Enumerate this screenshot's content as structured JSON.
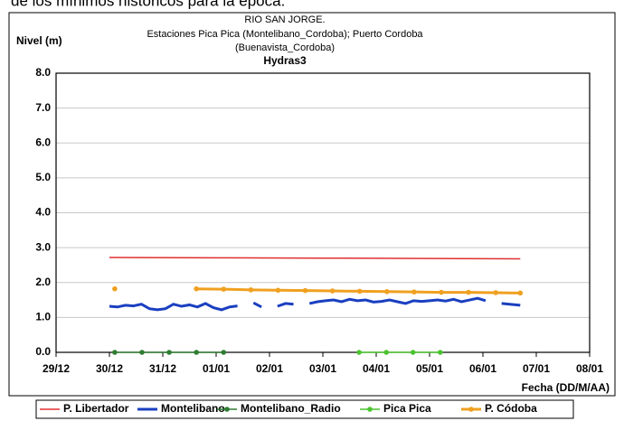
{
  "caption": "de los mínimos históricos para la época.",
  "chart_data": {
    "type": "line",
    "title": "RIO SAN JORGE.",
    "subtitle": [
      "Estaciones Pica Pica (Montelibano_Cordoba); Puerto Cordoba",
      "(Buenavista_Cordoba)",
      "Hydras3"
    ],
    "y_label": "Nivel (m)",
    "x_label": "Fecha (DD/M/AA)",
    "xlim": [
      0,
      10
    ],
    "xticks": [
      {
        "value": 0,
        "label": "29/12"
      },
      {
        "value": 1,
        "label": "30/12"
      },
      {
        "value": 2,
        "label": "31/12"
      },
      {
        "value": 3,
        "label": "01/01"
      },
      {
        "value": 4,
        "label": "02/01"
      },
      {
        "value": 5,
        "label": "03/01"
      },
      {
        "value": 6,
        "label": "04/01"
      },
      {
        "value": 7,
        "label": "05/01"
      },
      {
        "value": 8,
        "label": "06/01"
      },
      {
        "value": 9,
        "label": "07/01"
      },
      {
        "value": 10,
        "label": "08/01"
      }
    ],
    "ylim": [
      0,
      8
    ],
    "yticks": [
      {
        "value": 0,
        "label": "0.0"
      },
      {
        "value": 1,
        "label": "1.0"
      },
      {
        "value": 2,
        "label": "2.0"
      },
      {
        "value": 3,
        "label": "3.0"
      },
      {
        "value": 4,
        "label": "4.0"
      },
      {
        "value": 5,
        "label": "5.0"
      },
      {
        "value": 6,
        "label": "6.0"
      },
      {
        "value": 7,
        "label": "7.0"
      },
      {
        "value": 8,
        "label": "8.0"
      }
    ],
    "grid": true,
    "legend": "bottom",
    "series": [
      {
        "name": "P. Libertador",
        "color": "#e03030",
        "width": 1.5,
        "markers": false,
        "x": [
          1.0,
          3.0,
          5.0,
          7.0,
          8.7
        ],
        "values": [
          2.72,
          2.71,
          2.7,
          2.69,
          2.68
        ]
      },
      {
        "name": "Montelibano",
        "color": "#1a3fc0",
        "width": 3,
        "markers": false,
        "x": [
          1.0,
          1.15,
          1.3,
          1.45,
          1.6,
          1.75,
          1.9,
          2.05,
          2.2,
          2.35,
          2.5,
          2.65,
          2.8,
          2.95,
          3.1,
          3.25,
          3.4,
          3.55,
          3.7,
          3.85,
          4.0,
          4.15,
          4.3,
          4.45,
          4.6,
          4.75,
          4.9,
          5.05,
          5.2,
          5.35,
          5.5,
          5.65,
          5.8,
          5.95,
          6.1,
          6.25,
          6.4,
          6.55,
          6.7,
          6.85,
          7.0,
          7.15,
          7.3,
          7.45,
          7.6,
          7.75,
          7.9,
          8.05,
          8.2,
          8.35,
          8.5,
          8.7
        ],
        "values": [
          1.32,
          1.3,
          1.35,
          1.33,
          1.38,
          1.25,
          1.22,
          1.25,
          1.38,
          1.32,
          1.36,
          1.3,
          1.4,
          1.28,
          1.22,
          1.3,
          1.33,
          null,
          1.42,
          1.3,
          null,
          1.32,
          1.4,
          1.38,
          null,
          1.4,
          1.45,
          1.48,
          1.5,
          1.45,
          1.52,
          1.48,
          1.5,
          1.44,
          1.46,
          1.5,
          1.45,
          1.4,
          1.48,
          1.46,
          1.48,
          1.5,
          1.47,
          1.52,
          1.45,
          1.5,
          1.55,
          1.48,
          null,
          1.4,
          1.38,
          1.35
        ]
      },
      {
        "name": "Montelibano_Radio",
        "color": "#2e7d32",
        "width": 1.5,
        "markers": true,
        "x": [
          1.1,
          1.61,
          2.12,
          2.63,
          3.14
        ],
        "values": [
          0,
          0,
          0,
          0,
          0
        ]
      },
      {
        "name": "Pica Pica",
        "color": "#4cc430",
        "width": 1.5,
        "markers": true,
        "x": [
          5.68,
          6.19,
          6.69,
          7.2
        ],
        "values": [
          0,
          0,
          0,
          0
        ]
      },
      {
        "name": "P. Códoba",
        "color": "#f0a020",
        "width": 3,
        "markers": true,
        "x": [
          1.1,
          1.6,
          2.63,
          3.14,
          3.65,
          4.16,
          4.67,
          5.18,
          5.69,
          6.2,
          6.71,
          7.22,
          7.73,
          8.24,
          8.7
        ],
        "values": [
          1.82,
          null,
          1.82,
          1.81,
          1.79,
          1.78,
          1.77,
          1.76,
          1.75,
          1.74,
          1.73,
          1.72,
          1.72,
          1.71,
          1.7
        ]
      }
    ]
  }
}
